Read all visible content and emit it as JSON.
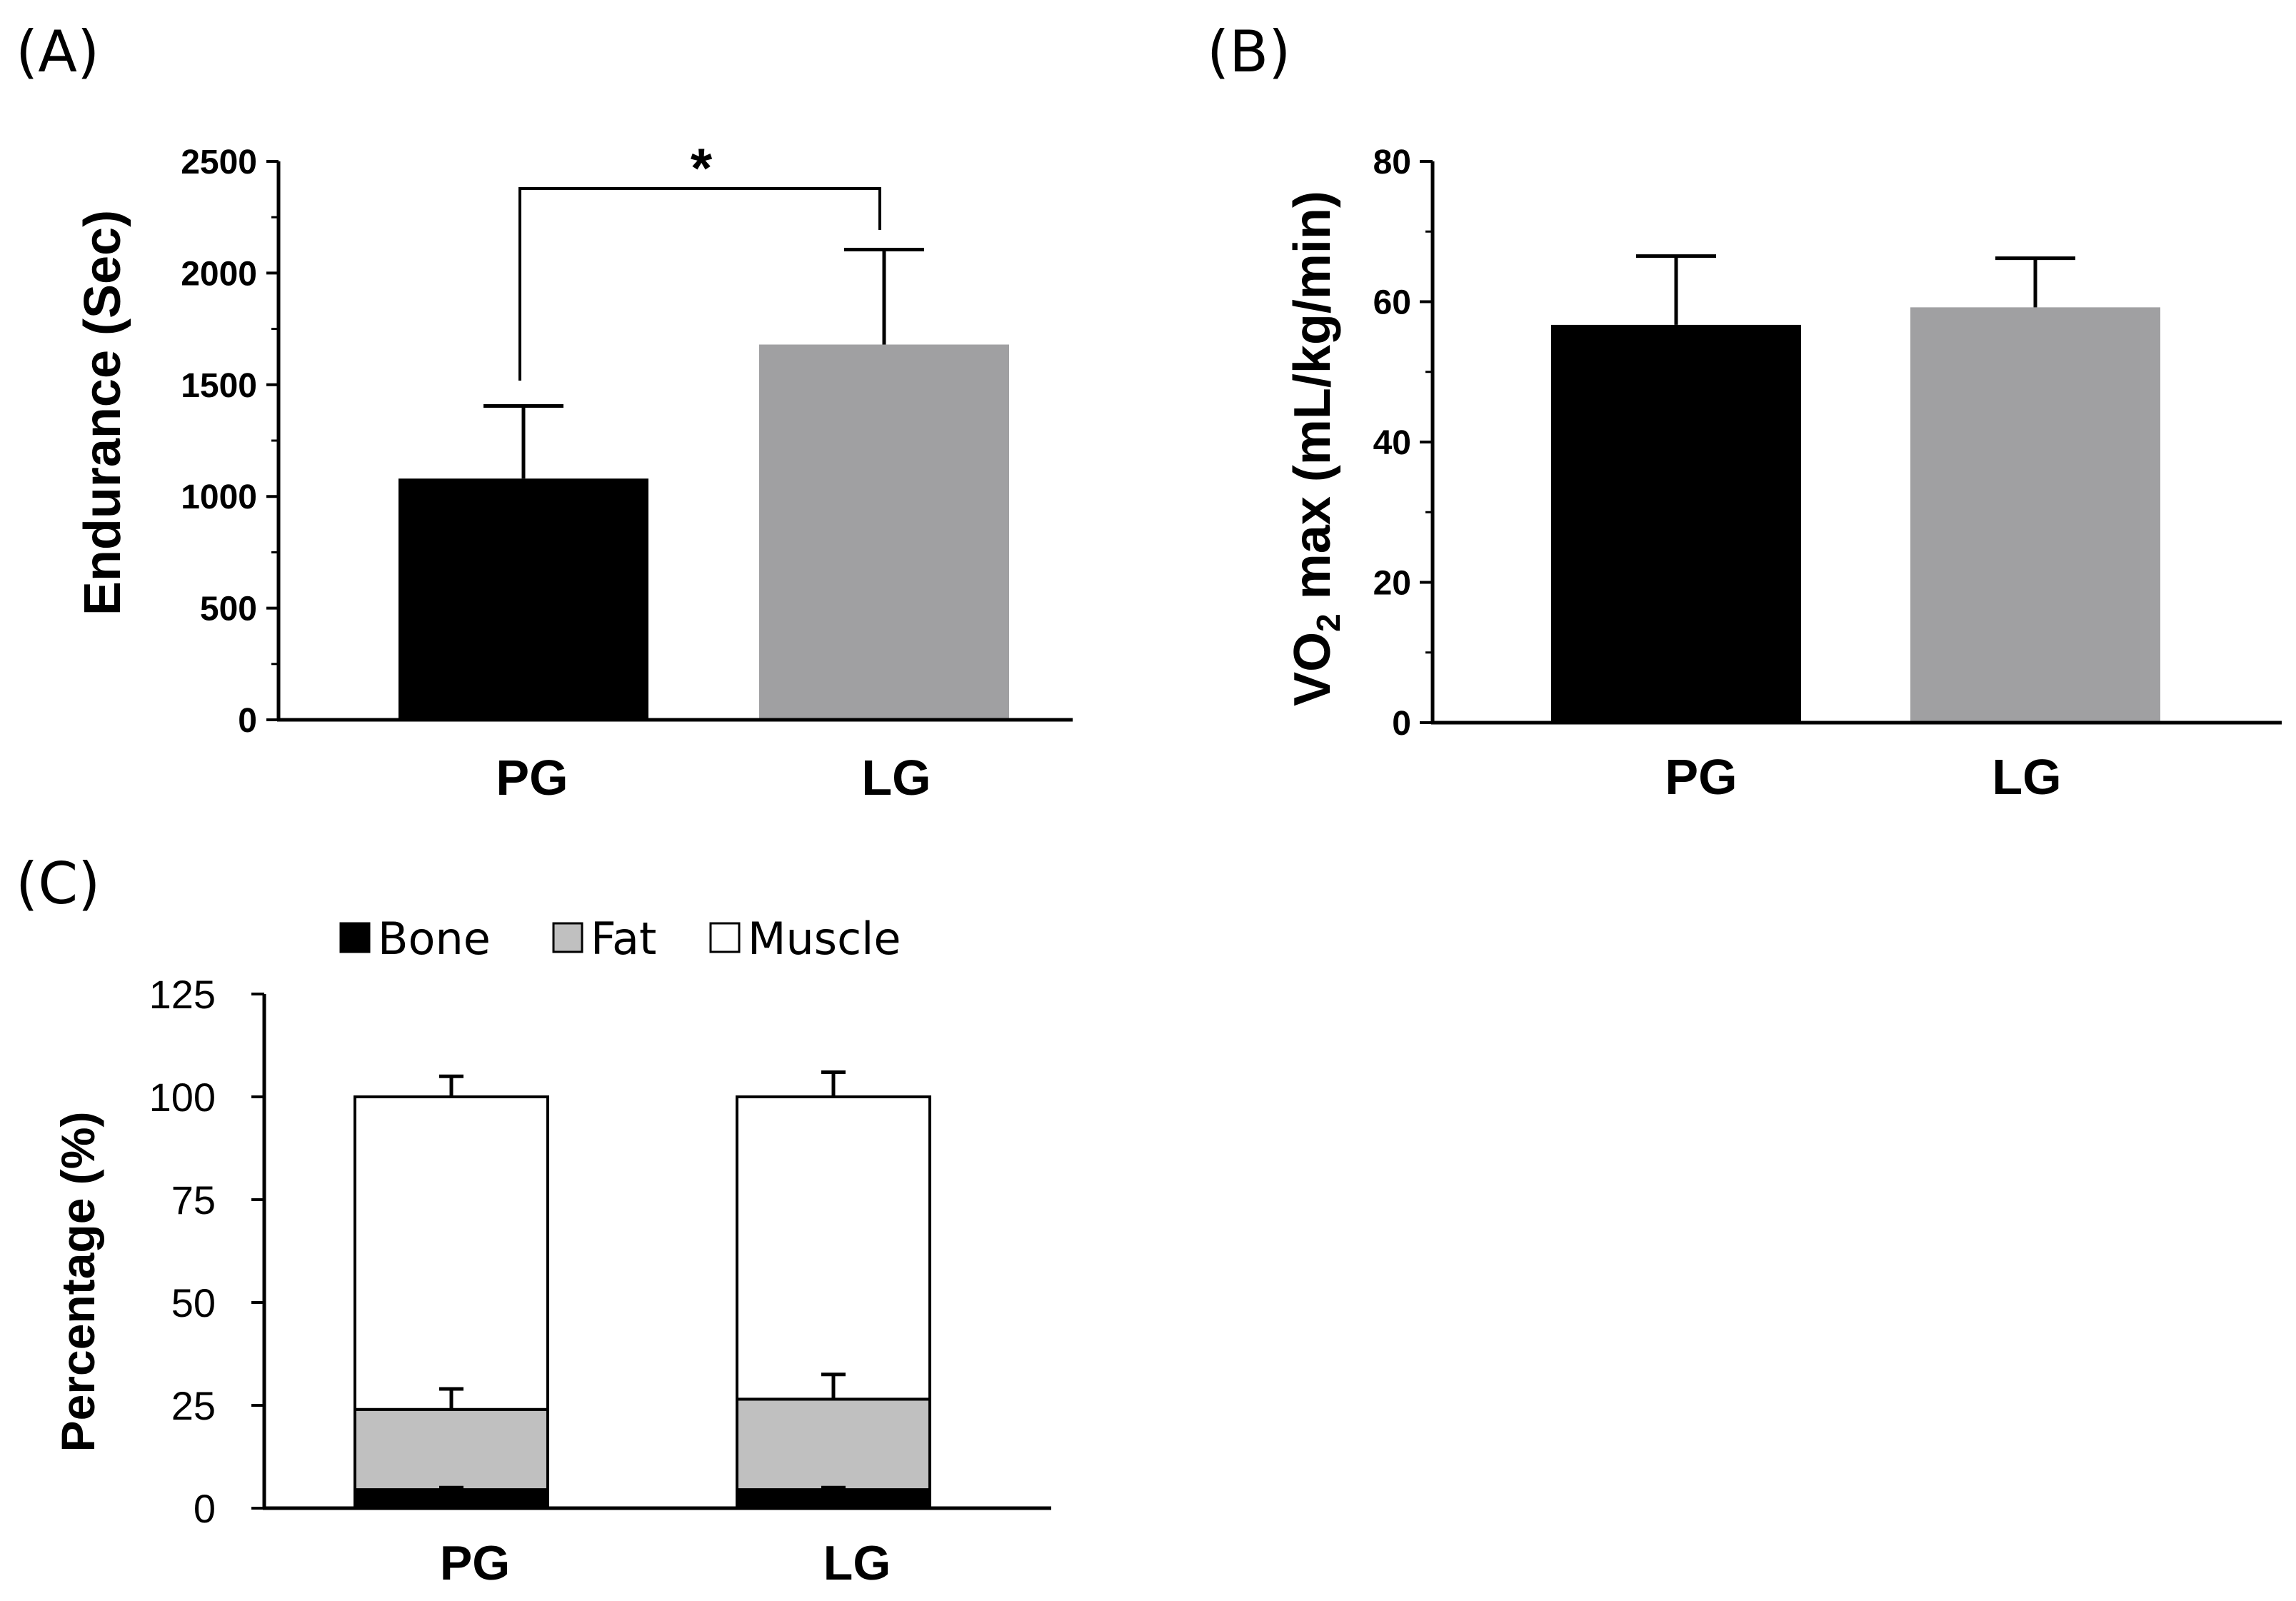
{
  "colors": {
    "pg": "#000000",
    "lg": "#a0a0a2",
    "bone": "#000000",
    "fat": "#c0c0c0",
    "muscle": "#ffffff"
  },
  "chart_data": [
    {
      "panel": "(A)",
      "type": "bar",
      "categories": [
        "PG",
        "LG"
      ],
      "values": [
        1080,
        1680
      ],
      "errors": [
        325,
        425
      ],
      "ylabel": "Endurance (Sec)",
      "ylim": [
        0,
        2500
      ],
      "yticks": [
        "0",
        "500",
        "1000",
        "1500",
        "2000",
        "2500"
      ],
      "significance": "*"
    },
    {
      "panel": "(B)",
      "type": "bar",
      "categories": [
        "PG",
        "LG"
      ],
      "values": [
        56.7,
        59.2
      ],
      "errors": [
        9.8,
        7
      ],
      "ylabel_main": "VO",
      "ylabel_sub": "2",
      "ylabel_rest": " max (mL/kg/min)",
      "ylim": [
        0,
        80
      ],
      "yticks": [
        "0",
        "20",
        "40",
        "60",
        "80"
      ]
    },
    {
      "panel": "(C)",
      "type": "bar",
      "stacked": true,
      "categories": [
        "PG",
        "LG"
      ],
      "series": [
        {
          "name": "Bone",
          "values": [
            4.5,
            4.5
          ],
          "errors": [
            0.5,
            0.5
          ]
        },
        {
          "name": "Fat",
          "values": [
            19.5,
            22
          ],
          "errors": [
            5,
            6
          ]
        },
        {
          "name": "Muscle",
          "values": [
            76,
            73.5
          ],
          "errors": [
            5,
            6
          ]
        }
      ],
      "ylabel": "Percentage (%)",
      "ylim": [
        0,
        125
      ],
      "yticks": [
        "0",
        "25",
        "50",
        "75",
        "100",
        "125"
      ]
    }
  ]
}
